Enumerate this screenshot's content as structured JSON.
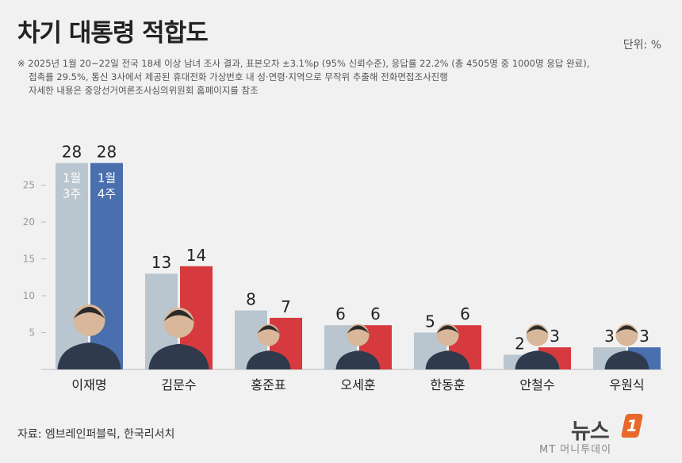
{
  "header": {
    "title": "차기 대통령 적합도",
    "unit": "단위: %",
    "notes": [
      "※ 2025년 1월 20~22일 전국 18세 이상 남녀 조사 결과, 표본오차 ±3.1%p (95% 신뢰수준), 응답률 22.2% (총 4505명 중 1000명 응답 완료),",
      "접촉률 29.5%, 통신 3사에서 제공된 휴대전화 가상번호 내 성·연령·지역으로 무작위 추출해 전화면접조사진행",
      "자세한 내용은 중앙선거여론조사심의위원회 홈페이지를 참조"
    ]
  },
  "footer": {
    "source": "자료: 엠브레인퍼블릭, 한국리서치",
    "logo": "뉴스",
    "logo_badge": "1",
    "watermark": "MT 머니투데이"
  },
  "chart_data": {
    "type": "bar",
    "categories": [
      "이재명",
      "김문수",
      "홍준표",
      "오세훈",
      "한동훈",
      "안철수",
      "우원식"
    ],
    "series": [
      {
        "name": "1월 3주",
        "values": [
          28,
          13,
          8,
          6,
          5,
          2,
          3
        ]
      },
      {
        "name": "1월 4주",
        "values": [
          28,
          14,
          7,
          6,
          6,
          3,
          3
        ]
      }
    ],
    "series_labels": [
      [
        "1월",
        "3주"
      ],
      [
        "1월",
        "4주"
      ]
    ],
    "yticks": [
      5,
      10,
      15,
      20,
      25
    ],
    "ylim": [
      0,
      28
    ],
    "grid": false,
    "colors": {
      "week3": "#b9c6cf",
      "week4_blue": "#4a6fae",
      "week4_red": "#d63a3e",
      "week4_by_category": [
        "blue",
        "red",
        "red",
        "red",
        "red",
        "red",
        "blue"
      ],
      "axis": "#bbbbbb",
      "tick_text": "#999999"
    }
  }
}
